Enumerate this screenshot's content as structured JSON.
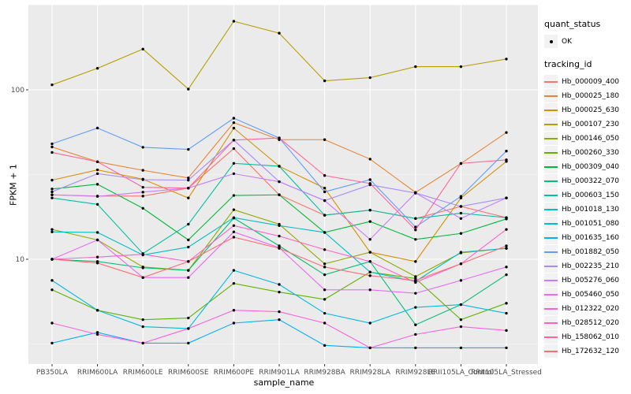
{
  "chart_data": {
    "type": "line",
    "title": "",
    "xlabel": "sample_name",
    "ylabel": "FPKM + 1",
    "y_scale": "log10",
    "ylim": [
      2.4,
      318
    ],
    "grid": true,
    "legend_position": "right",
    "y_ticks": [
      {
        "value": 100,
        "label": "100"
      },
      {
        "value": 10,
        "label": "10"
      }
    ],
    "y_minor_ticks": [
      316.2,
      31.62,
      3.162
    ],
    "categories": [
      "PB350LA",
      "RRIM600LA",
      "RRIM600LE",
      "RRIM600SE",
      "RRIM600PE",
      "RRIM901LA",
      "RRIM928BA",
      "RRIM928LA",
      "RRIM928LE",
      "RRII105LA_Control",
      "RRII105LA_Stressed"
    ],
    "legend": {
      "quant_status_title": "quant_status",
      "quant_status_items": [
        {
          "label": "OK",
          "symbol": "point"
        }
      ],
      "tracking_title": "tracking_id"
    },
    "point_color": "#000000",
    "series": [
      {
        "name": "Hb_000009_400",
        "color": "#F8766D",
        "values": [
          24,
          23.6,
          23.6,
          26.3,
          45,
          24,
          18.2,
          19.5,
          17.4,
          20.5,
          17.6
        ]
      },
      {
        "name": "Hb_000025_180",
        "color": "#EA8331",
        "values": [
          46,
          37.6,
          33.5,
          30.2,
          64,
          50.8,
          50.8,
          39,
          24.8,
          36.7,
          56
        ]
      },
      {
        "name": "Hb_000025_630",
        "color": "#D59100",
        "values": [
          29.3,
          33.7,
          29.7,
          23,
          59.4,
          35.4,
          26.3,
          11,
          9.7,
          23,
          37.8
        ]
      },
      {
        "name": "Hb_000107_230",
        "color": "#B79F00",
        "values": [
          107,
          134,
          174,
          101,
          254,
          216,
          113,
          118,
          137,
          137,
          152
        ]
      },
      {
        "name": "Hb_000146_050",
        "color": "#93AA00",
        "values": [
          15,
          13,
          9,
          8.6,
          19.6,
          16.1,
          9.4,
          11,
          7.9,
          10.9,
          11.6
        ]
      },
      {
        "name": "Hb_000260_330",
        "color": "#5EB300",
        "values": [
          6.6,
          5,
          4.4,
          4.5,
          7.2,
          6.4,
          5.8,
          8.4,
          7.7,
          4.4,
          5.5
        ]
      },
      {
        "name": "Hb_000309_040",
        "color": "#00BA38",
        "values": [
          26,
          27.7,
          20,
          13,
          23.8,
          24,
          14.4,
          16.7,
          13.1,
          14.2,
          17.3
        ]
      },
      {
        "name": "Hb_000322_070",
        "color": "#00BF74",
        "values": [
          10,
          9.7,
          8.9,
          8.6,
          17.5,
          12,
          8.1,
          9.7,
          4.1,
          5.4,
          8.1
        ]
      },
      {
        "name": "Hb_000603_150",
        "color": "#00C19F",
        "values": [
          23,
          21.1,
          10.8,
          16.1,
          36.8,
          35.4,
          18.2,
          19.5,
          17.4,
          18.7,
          17.6
        ]
      },
      {
        "name": "Hb_001018_130",
        "color": "#00BFC4",
        "values": [
          14.5,
          14.4,
          10.6,
          11.8,
          17.6,
          15.8,
          14.4,
          8.4,
          7.4,
          11,
          11.6
        ]
      },
      {
        "name": "Hb_001051_080",
        "color": "#00BADE",
        "values": [
          7.5,
          5,
          4,
          3.9,
          8.6,
          7.1,
          4.8,
          4.2,
          5.2,
          5.4,
          4.8
        ]
      },
      {
        "name": "Hb_001635_160",
        "color": "#00B0F6",
        "values": [
          3.2,
          3.7,
          3.2,
          3.2,
          4.2,
          4.4,
          3.1,
          3,
          3,
          3,
          3
        ]
      },
      {
        "name": "Hb_001882_050",
        "color": "#619CFF",
        "values": [
          48,
          59.5,
          45.8,
          44.5,
          68,
          52,
          25,
          29.5,
          15.5,
          23.5,
          43.5
        ]
      },
      {
        "name": "Hb_002235_210",
        "color": "#A58AFF",
        "values": [
          25,
          32,
          29.5,
          29.3,
          50.5,
          28.7,
          22.2,
          27.5,
          24.6,
          20.5,
          23
        ]
      },
      {
        "name": "Hb_005276_060",
        "color": "#C77CFF",
        "values": [
          24,
          23.5,
          24.9,
          26.3,
          32,
          28.7,
          22.2,
          13.1,
          24.6,
          17.4,
          23
        ]
      },
      {
        "name": "Hb_005460_050",
        "color": "#E76BF3",
        "values": [
          10,
          13,
          7.8,
          7.8,
          14.5,
          11.7,
          6.6,
          6.6,
          6.3,
          7.5,
          9
        ]
      },
      {
        "name": "Hb_012322_020",
        "color": "#FA62DB",
        "values": [
          4.2,
          3.6,
          3.2,
          3.9,
          5,
          4.9,
          4.2,
          3,
          3.6,
          4,
          3.8
        ]
      },
      {
        "name": "Hb_028512_020",
        "color": "#FF61C9",
        "values": [
          10,
          10.3,
          10.7,
          9.7,
          15.8,
          13.7,
          11.4,
          9.7,
          7.3,
          9.4,
          15
        ]
      },
      {
        "name": "Hb_158062_010",
        "color": "#FF659E",
        "values": [
          42.7,
          37.6,
          26.6,
          26.3,
          50.5,
          52,
          31.2,
          28,
          14.9,
          36.8,
          38.6
        ]
      },
      {
        "name": "Hb_172632_120",
        "color": "#FF6C74",
        "values": [
          10,
          9.5,
          7.8,
          9.7,
          13.5,
          11.6,
          9,
          8,
          7.5,
          9.4,
          12
        ]
      }
    ]
  },
  "colors": {
    "panel_bg": "#EBEBEB",
    "grid_major": "#FFFFFF",
    "grid_minor": "#F5F5F5",
    "axis_text": "#4D4D4D",
    "tick_mark": "#333333",
    "legend_key_bg": "#F2F2F2"
  }
}
